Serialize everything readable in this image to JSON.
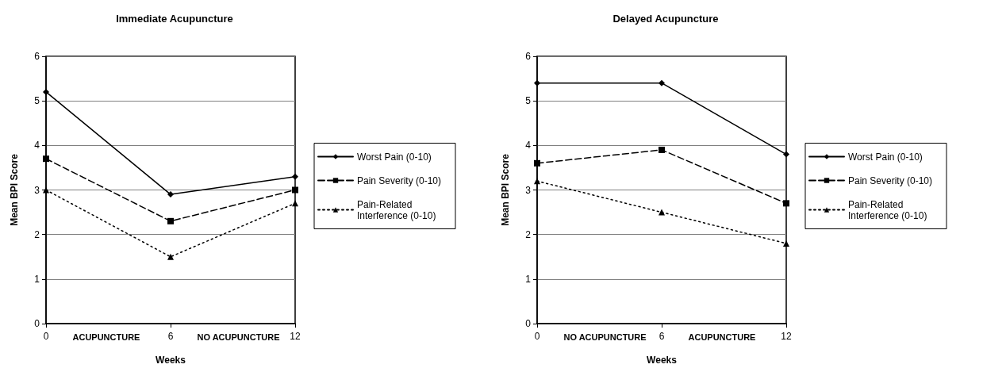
{
  "chart_data": [
    {
      "type": "line",
      "title": "Immediate Acupuncture",
      "xlabel": "Weeks",
      "ylabel": "Mean BPI Score",
      "x": [
        0,
        6,
        12
      ],
      "xlim": [
        0,
        12
      ],
      "xticks": [
        0,
        6,
        12
      ],
      "ylim": [
        0,
        6
      ],
      "yticks": [
        0,
        1,
        2,
        3,
        4,
        5,
        6
      ],
      "grid": "y",
      "legend": "right",
      "annotations": [
        "ACUPUNCTURE",
        "NO ACUPUNCTURE"
      ],
      "series": [
        {
          "name": "Worst Pain (0-10)",
          "color": "#000000",
          "marker": "diamond",
          "line_style": "solid",
          "values": [
            5.2,
            2.9,
            3.3
          ]
        },
        {
          "name": "Pain Severity (0-10)",
          "color": "#000000",
          "marker": "square",
          "line_style": "dashed",
          "values": [
            3.7,
            2.3,
            3.0
          ]
        },
        {
          "name": "Pain-Related Interference (0-10)",
          "color": "#000000",
          "marker": "triangle",
          "line_style": "dotted",
          "values": [
            3.0,
            1.5,
            2.7
          ]
        }
      ]
    },
    {
      "type": "line",
      "title": "Delayed Acupuncture",
      "xlabel": "Weeks",
      "ylabel": "Mean BPI Score",
      "x": [
        0,
        6,
        12
      ],
      "xlim": [
        0,
        12
      ],
      "xticks": [
        0,
        6,
        12
      ],
      "ylim": [
        0,
        6
      ],
      "yticks": [
        0,
        1,
        2,
        3,
        4,
        5,
        6
      ],
      "grid": "y",
      "legend": "right",
      "annotations": [
        "NO ACUPUNCTURE",
        "ACUPUNCTURE"
      ],
      "series": [
        {
          "name": "Worst Pain (0-10)",
          "color": "#000000",
          "marker": "diamond",
          "line_style": "solid",
          "values": [
            5.4,
            5.4,
            3.8
          ]
        },
        {
          "name": "Pain Severity (0-10)",
          "color": "#000000",
          "marker": "square",
          "line_style": "dashed",
          "values": [
            3.6,
            3.9,
            2.7
          ]
        },
        {
          "name": "Pain-Related Interference (0-10)",
          "color": "#000000",
          "marker": "triangle",
          "line_style": "dotted",
          "values": [
            3.2,
            2.5,
            1.8
          ]
        }
      ]
    }
  ]
}
